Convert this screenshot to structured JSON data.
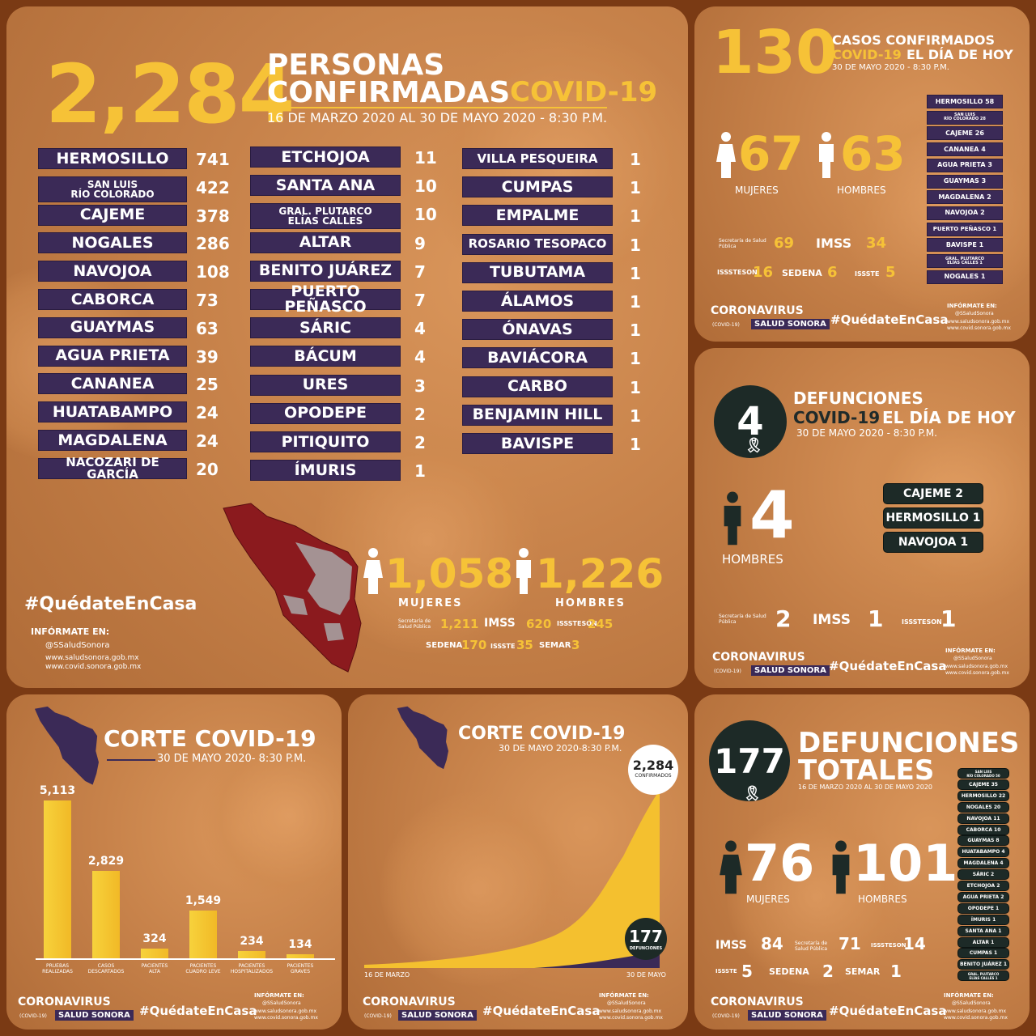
{
  "main": {
    "total": "2,284",
    "title_line1": "PERSONAS",
    "title_line2": "CONFIRMADAS",
    "title_covid": "COVID-19",
    "date_range": "16 DE MARZO 2020 AL 30 DE MAYO 2020 - 8:30 P.M.",
    "col1": [
      {
        "name": "HERMOSILLO",
        "value": "741"
      },
      {
        "name": "SAN LUIS\nRÍO COLORADO",
        "value": "422"
      },
      {
        "name": "CAJEME",
        "value": "378"
      },
      {
        "name": "NOGALES",
        "value": "286"
      },
      {
        "name": "NAVOJOA",
        "value": "108"
      },
      {
        "name": "CABORCA",
        "value": "73"
      },
      {
        "name": "GUAYMAS",
        "value": "63"
      },
      {
        "name": "AGUA PRIETA",
        "value": "39"
      },
      {
        "name": "CANANEA",
        "value": "25"
      },
      {
        "name": "HUATABAMPO",
        "value": "24"
      },
      {
        "name": "MAGDALENA",
        "value": "24"
      },
      {
        "name": "NACOZARI DE GARCÍA",
        "value": "20"
      }
    ],
    "col2": [
      {
        "name": "ETCHOJOA",
        "value": "11"
      },
      {
        "name": "SANTA ANA",
        "value": "10"
      },
      {
        "name": "GRAL. PLUTARCO\nELÍAS CALLES",
        "value": "10"
      },
      {
        "name": "ALTAR",
        "value": "9"
      },
      {
        "name": "BENITO JUÁREZ",
        "value": "7"
      },
      {
        "name": "PUERTO PEÑASCO",
        "value": "7"
      },
      {
        "name": "SÁRIC",
        "value": "4"
      },
      {
        "name": "BÁCUM",
        "value": "4"
      },
      {
        "name": "URES",
        "value": "3"
      },
      {
        "name": "OPODEPE",
        "value": "2"
      },
      {
        "name": "PITIQUITO",
        "value": "2"
      },
      {
        "name": "ÍMURIS",
        "value": "1"
      }
    ],
    "col3": [
      {
        "name": "VILLA PESQUEIRA",
        "value": "1"
      },
      {
        "name": "CUMPAS",
        "value": "1"
      },
      {
        "name": "EMPALME",
        "value": "1"
      },
      {
        "name": "ROSARIO TESOPACO",
        "value": "1"
      },
      {
        "name": "TUBUTAMA",
        "value": "1"
      },
      {
        "name": "ÁLAMOS",
        "value": "1"
      },
      {
        "name": "ÓNAVAS",
        "value": "1"
      },
      {
        "name": "BAVIÁCORA",
        "value": "1"
      },
      {
        "name": "CARBO",
        "value": "1"
      },
      {
        "name": "BENJAMIN HILL",
        "value": "1"
      },
      {
        "name": "BAVISPE",
        "value": "1"
      }
    ],
    "women": "1,058",
    "women_label": "MUJERES",
    "men": "1,226",
    "men_label": "HOMBRES",
    "inst_ssa": "1,211",
    "inst_imss": "620",
    "inst_issste_son": "245",
    "inst_sedena": "170",
    "inst_issste": "35",
    "inst_semar": "3",
    "hashtag": "#QuédateEnCasa",
    "info_title": "INFÓRMATE EN:",
    "social": "@SSaludSonora",
    "web1": "www.saludsonora.gob.mx",
    "web2": "www.covid.sonora.gob.mx"
  },
  "today": {
    "total": "130",
    "title1": "CASOS CONFIRMADOS",
    "title2a": "COVID-19",
    "title2b": "EL DÍA DE HOY",
    "date": "30 DE MAYO 2020 - 8:30 P.M.",
    "women": "67",
    "women_label": "MUJERES",
    "men": "63",
    "men_label": "HOMBRES",
    "inst_ssa": "69",
    "inst_imss": "34",
    "inst_issste_son": "16",
    "inst_sedena": "6",
    "inst_issste": "5",
    "list": [
      {
        "name": "HERMOSILLO",
        "value": "58"
      },
      {
        "name": "SAN LUIS\nRÍO COLORADO",
        "value": "28"
      },
      {
        "name": "CAJEME",
        "value": "26"
      },
      {
        "name": "CANANEA",
        "value": "4"
      },
      {
        "name": "AGUA PRIETA",
        "value": "3"
      },
      {
        "name": "GUAYMAS",
        "value": "3"
      },
      {
        "name": "MAGDALENA",
        "value": "2"
      },
      {
        "name": "NAVOJOA",
        "value": "2"
      },
      {
        "name": "PUERTO PEÑASCO",
        "value": "1"
      },
      {
        "name": "BAVISPE",
        "value": "1"
      },
      {
        "name": "GRAL. PLUTARCO\nELÍAS CALLES",
        "value": "1"
      },
      {
        "name": "NOGALES",
        "value": "1"
      }
    ]
  },
  "deaths_today": {
    "total": "4",
    "title1": "DEFUNCIONES",
    "title2a": "COVID-19",
    "title2b": "EL DÍA DE HOY",
    "date": "30 DE MAYO 2020 - 8:30 P.M.",
    "men": "4",
    "men_label": "HOMBRES",
    "list": [
      "CAJEME 2",
      "HERMOSILLO 1",
      "NAVOJOA 1"
    ],
    "inst_ssa": "2",
    "inst_imss": "1",
    "inst_issste_son": "1"
  },
  "corte": {
    "title": "CORTE  COVID-19",
    "date": "30 DE MAYO 2020- 8:30 P.M.",
    "chart_data": {
      "type": "bar",
      "categories": [
        "PRUEBAS\nREALIZADAS",
        "CASOS\nDESCARTADOS",
        "PACIENTES\nALTA",
        "PACIENTES\nCUADRO LEVE",
        "PACIENTES\nHOSPITALIZADOS",
        "PACIENTES\nGRAVES"
      ],
      "values": [
        5113,
        2829,
        324,
        1549,
        234,
        134
      ],
      "labels": [
        "5,113",
        "2,829",
        "324",
        "1,549",
        "234",
        "134"
      ]
    }
  },
  "curve": {
    "title": "CORTE  COVID-19",
    "date": "30 DE MAYO 2020-8:30 P.M.",
    "confirmed": "2,284",
    "confirmed_label": "CONFIRMADOS",
    "deaths": "177",
    "deaths_label": "DEFUNCIONES",
    "x_start": "16 DE MARZO",
    "x_end": "30 DE MAYO"
  },
  "deaths_total": {
    "total": "177",
    "title1": "DEFUNCIONES",
    "title2": "TOTALES",
    "date": "16 DE MARZO 2020 AL 30 DE MAYO 2020",
    "women": "76",
    "women_label": "MUJERES",
    "men": "101",
    "men_label": "HOMBRES",
    "inst_imss": "84",
    "inst_ssa": "71",
    "inst_issste_son": "14",
    "inst_issste": "5",
    "inst_sedena": "2",
    "inst_semar": "1",
    "list": [
      "SAN LUIS\nRÍO COLORADO 50",
      "CAJEME 35",
      "HERMOSILLO 22",
      "NOGALES 20",
      "NAVOJOA 11",
      "CABORCA 10",
      "GUAYMAS 8",
      "HUATABAMPO 4",
      "MAGDALENA 4",
      "SÁRIC 2",
      "ETCHOJOA 2",
      "AGUA PRIETA 2",
      "OPODEPE 1",
      "ÍMURIS 1",
      "SANTA ANA 1",
      "ALTAR 1",
      "CUMPAS 1",
      "BENITO JUÁREZ 1",
      "GRAL. PLUTARCO\nELÍAS CALLES 1"
    ]
  },
  "brand": {
    "coronavirus": "CORONAVIRUS",
    "covid19": "(COVID-19)",
    "salud": "SALUD SONORA",
    "hashtag": "#QuédateEnCasa",
    "info_title": "INFÓRMATE EN:",
    "social": "@SSaludSonora",
    "web1": "www.saludsonora.gob.mx",
    "web2": "www.covid.sonora.gob.mx"
  },
  "inst_names": {
    "ssa": "Secretaría de Salud Pública",
    "imss": "IMSS",
    "issste_son": "ISSSTESON",
    "sedena": "SEDENA",
    "issste": "ISSSTE",
    "semar": "SEMAR"
  },
  "colors": {
    "accent": "#f6c237",
    "purple": "#3b2a57",
    "dark": "#1d2a27",
    "bg": "#c7824a"
  }
}
